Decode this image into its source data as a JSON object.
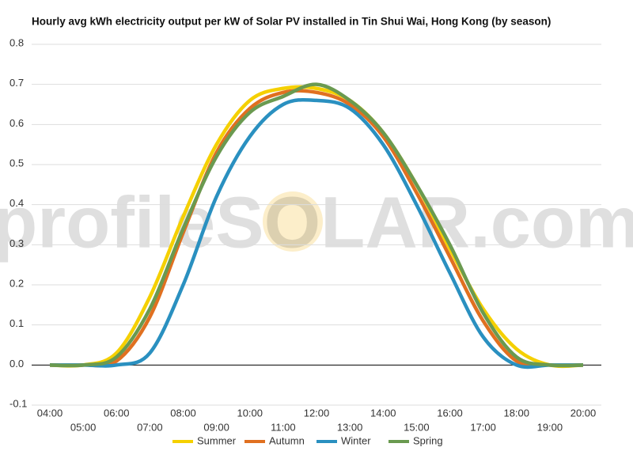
{
  "chart_data": {
    "type": "line",
    "title": "Hourly avg kWh electricity output per kW of Solar PV installed in Tin Shui Wai, Hong Kong (by season)",
    "watermark": "profileSOLAR.com",
    "categories": [
      "04:00",
      "05:00",
      "06:00",
      "07:00",
      "08:00",
      "09:00",
      "10:00",
      "11:00",
      "12:00",
      "13:00",
      "14:00",
      "15:00",
      "16:00",
      "17:00",
      "18:00",
      "19:00",
      "20:00"
    ],
    "series": [
      {
        "name": "Summer",
        "color": "#f5d000",
        "values": [
          0,
          0,
          0.03,
          0.17,
          0.37,
          0.55,
          0.66,
          0.69,
          0.69,
          0.66,
          0.58,
          0.45,
          0.29,
          0.14,
          0.04,
          0,
          0
        ]
      },
      {
        "name": "Autumn",
        "color": "#e07020",
        "values": [
          0,
          0,
          0.01,
          0.12,
          0.33,
          0.53,
          0.64,
          0.68,
          0.68,
          0.65,
          0.57,
          0.43,
          0.27,
          0.11,
          0.01,
          0,
          0
        ]
      },
      {
        "name": "Winter",
        "color": "#2a90c0",
        "values": [
          0,
          0,
          0,
          0.03,
          0.2,
          0.42,
          0.57,
          0.65,
          0.66,
          0.64,
          0.55,
          0.4,
          0.23,
          0.07,
          0,
          0,
          0
        ]
      },
      {
        "name": "Spring",
        "color": "#6a9a50",
        "values": [
          0,
          0,
          0.02,
          0.14,
          0.34,
          0.52,
          0.63,
          0.67,
          0.7,
          0.66,
          0.58,
          0.45,
          0.3,
          0.13,
          0.02,
          0,
          0
        ]
      }
    ],
    "ylim": [
      -0.1,
      0.8
    ],
    "yticks": [
      -0.1,
      {
        "value": 0,
        "label": "0.0"
      },
      0.1,
      0.2,
      0.3,
      0.4,
      0.5,
      0.6,
      0.7,
      0.8
    ],
    "grid": true
  }
}
